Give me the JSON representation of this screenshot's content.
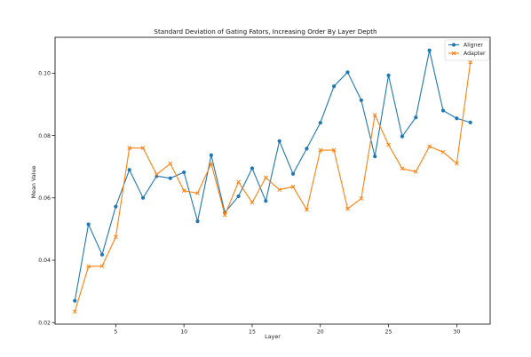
{
  "chart_data": {
    "type": "line",
    "title": "Standard Deviation of Gating Fators, Increasing Order By Layer Depth",
    "xlabel": "Layer",
    "ylabel": "Mean Value",
    "xlim": [
      0.55,
      32.45
    ],
    "ylim": [
      0.0195,
      0.1115
    ],
    "x_ticks": [
      5,
      10,
      15,
      20,
      25,
      30
    ],
    "y_ticks": [
      0.02,
      0.04,
      0.06,
      0.08,
      0.1
    ],
    "x_tick_labels": [
      "5",
      "10",
      "15",
      "20",
      "25",
      "30"
    ],
    "y_tick_labels": [
      "0.02",
      "0.04",
      "0.06",
      "0.08",
      "0.10"
    ],
    "grid": false,
    "legend_position": "top-right",
    "x": [
      2,
      3,
      4,
      5,
      6,
      7,
      8,
      9,
      10,
      11,
      12,
      13,
      14,
      15,
      16,
      17,
      18,
      19,
      20,
      21,
      22,
      23,
      24,
      25,
      26,
      27,
      28,
      29,
      30,
      31
    ],
    "series": [
      {
        "name": "Aligner",
        "color": "#1f77b4",
        "marker": "circle",
        "values": [
          0.027,
          0.0515,
          0.0418,
          0.0572,
          0.069,
          0.06,
          0.067,
          0.0663,
          0.0682,
          0.0525,
          0.0737,
          0.0553,
          0.0605,
          0.0695,
          0.059,
          0.0782,
          0.0677,
          0.0758,
          0.0841,
          0.0958,
          0.1003,
          0.0913,
          0.0733,
          0.0993,
          0.0797,
          0.0858,
          0.1073,
          0.088,
          0.0855,
          0.0842
        ]
      },
      {
        "name": "Adapter",
        "color": "#ff7f0e",
        "marker": "x",
        "values": [
          0.0235,
          0.038,
          0.0381,
          0.0474,
          0.076,
          0.076,
          0.0675,
          0.071,
          0.0623,
          0.0615,
          0.071,
          0.0545,
          0.0651,
          0.0585,
          0.0665,
          0.0626,
          0.0636,
          0.0562,
          0.0753,
          0.0753,
          0.0565,
          0.0598,
          0.0866,
          0.077,
          0.0694,
          0.0684,
          0.0765,
          0.0747,
          0.071,
          0.1035
        ]
      }
    ]
  }
}
